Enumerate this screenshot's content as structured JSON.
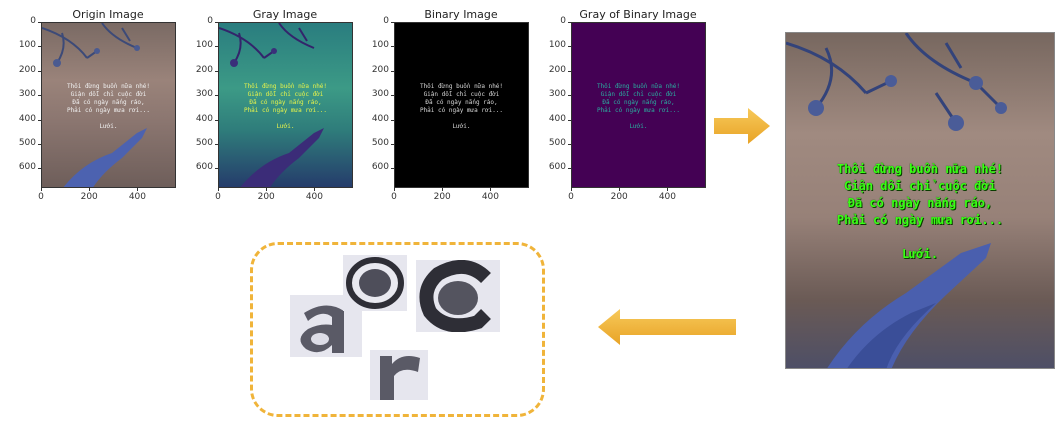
{
  "panels": [
    {
      "title": "Origin Image"
    },
    {
      "title": "Gray Image"
    },
    {
      "title": "Binary Image"
    },
    {
      "title": "Gray of Binary Image"
    }
  ],
  "y_ticks": [
    "0",
    "100",
    "200",
    "300",
    "400",
    "500",
    "600"
  ],
  "x_ticks": [
    "0",
    "200",
    "400"
  ],
  "poem_lines": [
    "Thôi đừng buồn nữa nhé!",
    "Giận dỗi chỉ cuộc đời",
    "Đã có ngày nắng ráo,",
    "Phải có ngày mưa rơi...",
    "",
    "Lưới."
  ],
  "colors": {
    "arrow": "#f0b43a",
    "green_text": "#39ff14",
    "viridis_bg": "#440154",
    "viridis_text": "#22a884"
  }
}
